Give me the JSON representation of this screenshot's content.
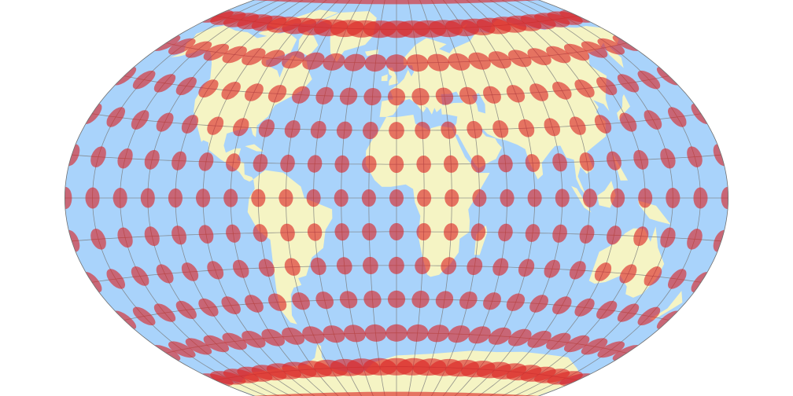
{
  "map": {
    "projection": "winkel-tripel",
    "graticule_step_deg": 15,
    "tissot_step_deg": 15,
    "tissot_radius_deg": 3.85,
    "colors": {
      "ocean": "#a9d3fb",
      "land": "#f5f4c4",
      "graticule": "#7a7a7a",
      "outline": "#707070",
      "indicatrix": "#dc2424",
      "background": "#ffffff"
    }
  }
}
